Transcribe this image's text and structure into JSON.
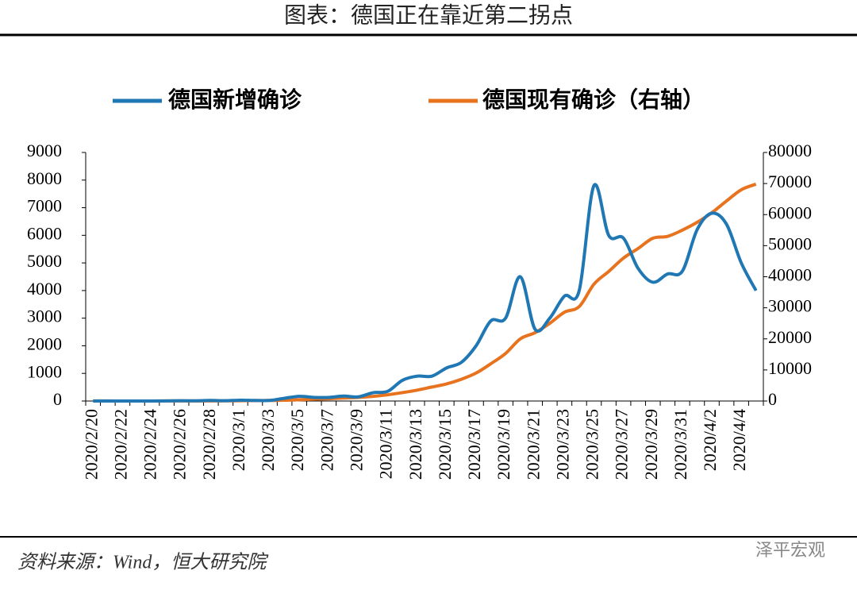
{
  "title": "图表：德国正在靠近第二拐点",
  "source": "资料来源：Wind，恒大研究院",
  "watermark": "泽平宏观",
  "chart_data": {
    "type": "line",
    "categories": [
      "2020/2/20",
      null,
      "2020/2/22",
      null,
      "2020/2/24",
      null,
      "2020/2/26",
      null,
      "2020/2/28",
      null,
      "2020/3/1",
      null,
      "2020/3/3",
      null,
      "2020/3/5",
      null,
      "2020/3/7",
      null,
      "2020/3/9",
      null,
      "2020/3/11",
      null,
      "2020/3/13",
      null,
      "2020/3/15",
      null,
      "2020/3/17",
      null,
      "2020/3/19",
      null,
      "2020/3/21",
      null,
      "2020/3/23",
      null,
      "2020/3/25",
      null,
      "2020/3/27",
      null,
      "2020/3/29",
      null,
      "2020/3/31",
      null,
      "2020/4/2",
      null,
      "2020/4/4",
      null
    ],
    "series": [
      {
        "name": "德国新增确诊",
        "color": "#1f77b4",
        "axis": "y",
        "values": [
          0,
          0,
          0,
          0,
          0,
          4,
          10,
          8,
          20,
          10,
          30,
          20,
          20,
          100,
          170,
          130,
          130,
          180,
          150,
          300,
          350,
          750,
          900,
          900,
          1200,
          1400,
          2000,
          2900,
          3000,
          4500,
          2600,
          3000,
          3800,
          4000,
          7800,
          6000,
          5900,
          4800,
          4300,
          4600,
          4700,
          6200,
          6800,
          6400,
          5000,
          4000
        ]
      },
      {
        "name": "德国现有确诊（右轴）",
        "color": "#e8731f",
        "axis": "y2",
        "values": [
          16,
          16,
          14,
          14,
          14,
          16,
          16,
          20,
          30,
          50,
          100,
          130,
          180,
          240,
          400,
          600,
          750,
          950,
          1150,
          1500,
          2000,
          2700,
          3500,
          4500,
          5500,
          7000,
          9000,
          12000,
          15300,
          20000,
          22000,
          25000,
          28600,
          30400,
          37600,
          41700,
          46000,
          49100,
          52400,
          53000,
          55000,
          57500,
          60600,
          64400,
          68000,
          69800
        ]
      }
    ],
    "ylim": [
      0,
      9000
    ],
    "yticks": [
      0,
      1000,
      2000,
      3000,
      4000,
      5000,
      6000,
      7000,
      8000,
      9000
    ],
    "y2lim": [
      0,
      80000
    ],
    "y2ticks": [
      0,
      10000,
      20000,
      30000,
      40000,
      50000,
      60000,
      70000,
      80000
    ]
  }
}
